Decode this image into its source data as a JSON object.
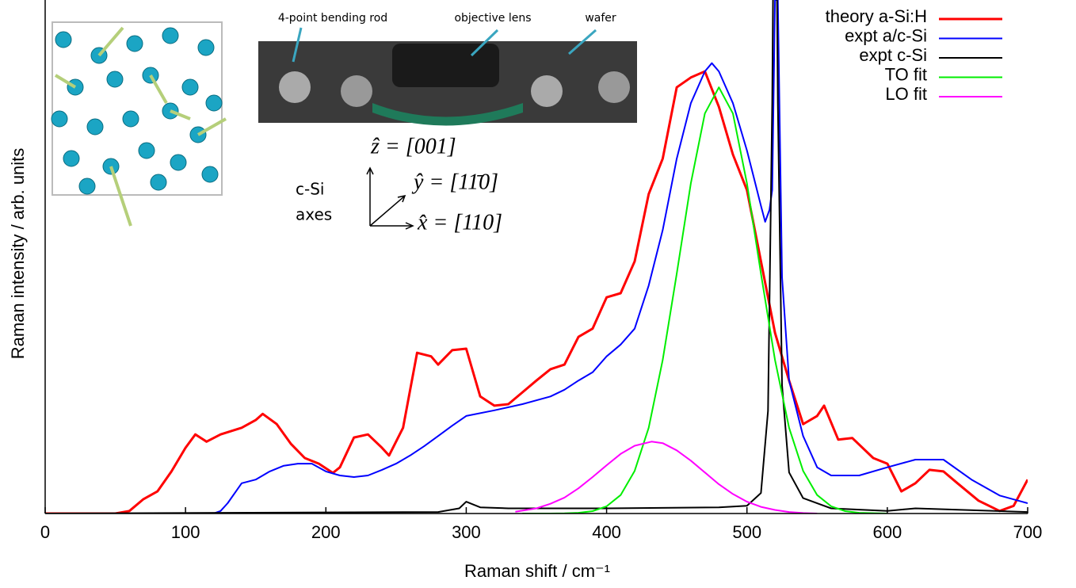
{
  "chart_data": {
    "type": "line",
    "xlabel": "Raman shift / cm⁻¹",
    "ylabel": "Raman intensity / arb. units",
    "xlim": [
      0,
      700
    ],
    "ylim": [
      0,
      100
    ],
    "xticks": [
      0,
      100,
      200,
      300,
      400,
      500,
      600,
      700
    ],
    "grid": false,
    "legend": "top right",
    "annotations": [
      "4-point bending rod",
      "objective lens",
      "wafer",
      "c-Si",
      "axes",
      "ẑ = [001]",
      "ŷ = [11̄0]",
      "x̂ = [110]"
    ],
    "series": [
      {
        "name": "theory a-Si:H",
        "color": "#ff0000",
        "x": [
          0,
          50,
          60,
          70,
          80,
          90,
          100,
          107,
          115,
          125,
          140,
          150,
          155,
          165,
          175,
          185,
          195,
          205,
          210,
          220,
          230,
          240,
          245,
          255,
          265,
          275,
          280,
          290,
          300,
          310,
          320,
          330,
          340,
          350,
          360,
          370,
          380,
          390,
          400,
          410,
          420,
          430,
          440,
          450,
          460,
          470,
          480,
          490,
          500,
          510,
          520,
          530,
          540,
          550,
          555,
          565,
          575,
          590,
          600,
          610,
          620,
          630,
          640,
          650,
          665,
          680,
          690,
          700
        ],
        "values": [
          0,
          0,
          0.5,
          2.8,
          4.3,
          8.2,
          12.8,
          15.4,
          14,
          15.4,
          16.7,
          18.2,
          19.4,
          17.4,
          13.6,
          10.8,
          9.7,
          7.9,
          9,
          14.8,
          15.4,
          12.8,
          11.3,
          16.7,
          31.3,
          30.6,
          29,
          31.8,
          32.1,
          22.8,
          21,
          21.3,
          23.6,
          25.9,
          28.1,
          29,
          34.4,
          36,
          42.1,
          42.9,
          49.1,
          62.2,
          69.1,
          83,
          84.9,
          86.1,
          79.2,
          69.9,
          63,
          49.1,
          35.2,
          25.9,
          17.4,
          19,
          21,
          14.4,
          14.7,
          10.8,
          9.7,
          4.3,
          5.9,
          8.5,
          8.2,
          5.9,
          2.5,
          0.5,
          1.5,
          6.6
        ]
      },
      {
        "name": "expt a/c-Si",
        "color": "#0000ff",
        "x": [
          0,
          120,
          125,
          130,
          140,
          150,
          160,
          170,
          180,
          190,
          200,
          210,
          220,
          230,
          240,
          250,
          260,
          270,
          280,
          290,
          300,
          320,
          340,
          360,
          370,
          380,
          390,
          400,
          410,
          420,
          430,
          440,
          450,
          460,
          470,
          475,
          480,
          490,
          500,
          505,
          510,
          513,
          516,
          518,
          520,
          522,
          525,
          530,
          540,
          550,
          560,
          580,
          600,
          620,
          640,
          660,
          680,
          700
        ],
        "values": [
          0,
          0,
          0.5,
          2,
          5.9,
          6.6,
          8.2,
          9.3,
          9.7,
          9.7,
          8.2,
          7.4,
          7.1,
          7.4,
          8.5,
          9.7,
          11.3,
          13.1,
          15.1,
          17.1,
          19,
          20.1,
          21.3,
          22.8,
          24.1,
          25.9,
          27.5,
          30.6,
          32.9,
          36,
          44.4,
          55.2,
          69.1,
          79.9,
          86.1,
          87.7,
          86.1,
          79.9,
          70.7,
          65.3,
          59.9,
          56.8,
          59.1,
          63,
          100,
          100,
          46,
          25.9,
          15.1,
          9,
          7.4,
          7.4,
          9,
          10.5,
          10.5,
          6.6,
          3.5,
          2
        ]
      },
      {
        "name": "expt c-Si",
        "color": "#000000",
        "x": [
          0,
          280,
          295,
          300,
          310,
          330,
          400,
          480,
          500,
          510,
          515,
          518,
          520,
          522,
          525,
          530,
          540,
          560,
          600,
          620,
          700
        ],
        "values": [
          0,
          0.3,
          1,
          2.3,
          1.2,
          1,
          1,
          1.2,
          1.5,
          4,
          20,
          80,
          150,
          80,
          25,
          8,
          3,
          1,
          0.5,
          1,
          0.3
        ]
      },
      {
        "name": "TO fit",
        "color": "#00ee00",
        "x": [
          340,
          350,
          360,
          370,
          380,
          390,
          400,
          410,
          420,
          430,
          440,
          450,
          460,
          470,
          480,
          490,
          500,
          510,
          520,
          530,
          540,
          550,
          560,
          570,
          580,
          600
        ],
        "values": [
          0,
          0,
          0,
          0.03,
          0.14,
          0.46,
          1.4,
          3.6,
          8.3,
          16.7,
          29.9,
          46.7,
          64.3,
          77.9,
          83,
          77.9,
          64.3,
          46.7,
          29.9,
          16.7,
          8.3,
          3.6,
          1.4,
          0.46,
          0.14,
          0
        ]
      },
      {
        "name": "LO fit",
        "color": "#ff00ff",
        "x": [
          335,
          350,
          360,
          370,
          380,
          390,
          400,
          410,
          420,
          432,
          440,
          450,
          460,
          470,
          480,
          490,
          500,
          510,
          520,
          530,
          540,
          550
        ],
        "values": [
          0.36,
          1,
          1.9,
          3.1,
          4.9,
          7.1,
          9.4,
          11.6,
          13.2,
          14,
          13.7,
          12.3,
          10.3,
          8,
          5.7,
          3.8,
          2.3,
          1.3,
          0.7,
          0.3,
          0.1,
          0
        ]
      }
    ]
  }
}
